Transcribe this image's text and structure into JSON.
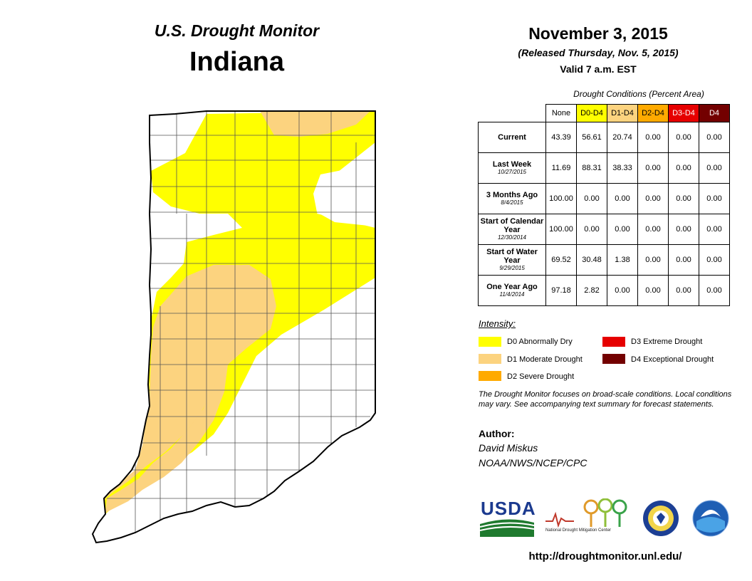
{
  "header": {
    "subtitle": "U.S. Drought Monitor",
    "state": "Indiana",
    "date": "November 3, 2015",
    "released": "(Released Thursday, Nov. 5, 2015)",
    "valid": "Valid 7 a.m. EST"
  },
  "table": {
    "caption": "Drought Conditions (Percent Area)",
    "columns": [
      {
        "label": "None",
        "color": "#ffffff"
      },
      {
        "label": "D0-D4",
        "color": "#ffff00"
      },
      {
        "label": "D1-D4",
        "color": "#fcd37f"
      },
      {
        "label": "D2-D4",
        "color": "#ffaa00"
      },
      {
        "label": "D3-D4",
        "color": "#e60000"
      },
      {
        "label": "D4",
        "color": "#730000"
      }
    ],
    "rows": [
      {
        "label": "Current",
        "date": "",
        "values": [
          "43.39",
          "56.61",
          "20.74",
          "0.00",
          "0.00",
          "0.00"
        ]
      },
      {
        "label": "Last Week",
        "date": "10/27/2015",
        "values": [
          "11.69",
          "88.31",
          "38.33",
          "0.00",
          "0.00",
          "0.00"
        ]
      },
      {
        "label": "3 Months Ago",
        "date": "8/4/2015",
        "values": [
          "100.00",
          "0.00",
          "0.00",
          "0.00",
          "0.00",
          "0.00"
        ]
      },
      {
        "label": "Start of Calendar Year",
        "date": "12/30/2014",
        "values": [
          "100.00",
          "0.00",
          "0.00",
          "0.00",
          "0.00",
          "0.00"
        ]
      },
      {
        "label": "Start of Water Year",
        "date": "9/29/2015",
        "values": [
          "69.52",
          "30.48",
          "1.38",
          "0.00",
          "0.00",
          "0.00"
        ]
      },
      {
        "label": "One Year Ago",
        "date": "11/4/2014",
        "values": [
          "97.18",
          "2.82",
          "0.00",
          "0.00",
          "0.00",
          "0.00"
        ]
      }
    ]
  },
  "legend": {
    "title": "Intensity:",
    "items": [
      {
        "label": "D0 Abnormally Dry",
        "color": "#ffff00"
      },
      {
        "label": "D1 Moderate Drought",
        "color": "#fcd37f"
      },
      {
        "label": "D2 Severe Drought",
        "color": "#ffaa00"
      },
      {
        "label": "D3 Extreme Drought",
        "color": "#e60000"
      },
      {
        "label": "D4 Exceptional Drought",
        "color": "#730000"
      }
    ]
  },
  "note": "The Drought Monitor focuses on broad-scale conditions. Local conditions may vary. See accompanying text summary for forecast statements.",
  "author": {
    "title": "Author:",
    "name": "David Miskus",
    "org": "NOAA/NWS/NCEP/CPC"
  },
  "logos": {
    "usda": "USDA",
    "ndmc": "National Drought Mitigation Center"
  },
  "url": "http://droughtmonitor.unl.edu/"
}
